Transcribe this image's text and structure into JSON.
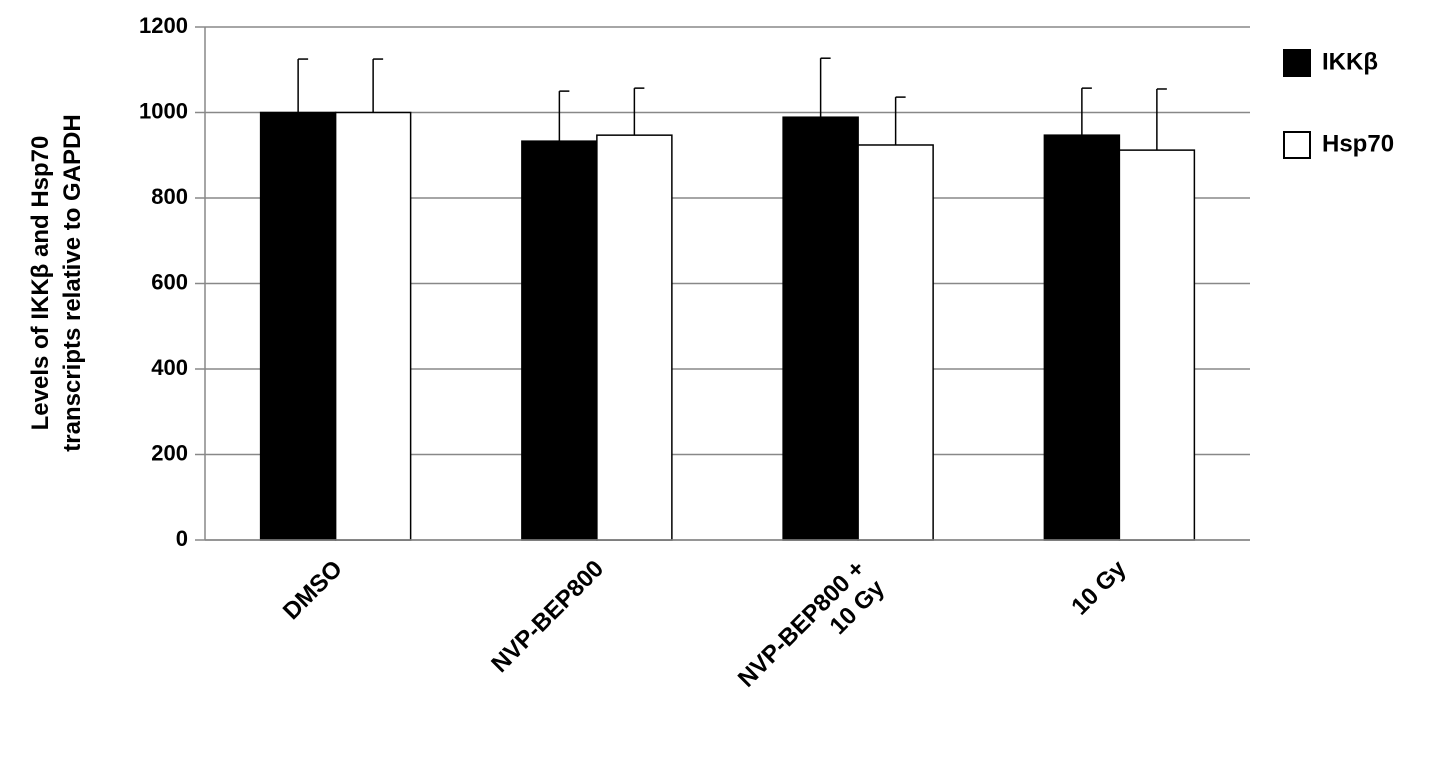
{
  "chart_data": {
    "type": "bar",
    "y_label": [
      "Levels of IKKβ and Hsp70",
      "transcripts relative to GAPDH"
    ],
    "categories": [
      "DMSO",
      "NVP-BEP800",
      "NVP-BEP800 +\n10 Gy",
      "10 Gy"
    ],
    "series": [
      {
        "name": "IKKβ",
        "color": "#000000",
        "values": [
          1000,
          933,
          989,
          947
        ],
        "errors": [
          125,
          117,
          138,
          110
        ]
      },
      {
        "name": "Hsp70",
        "color": "#ffffff",
        "values": [
          1000,
          947,
          924,
          912
        ],
        "errors": [
          125,
          110,
          112,
          143
        ]
      }
    ],
    "ylim": [
      0,
      1200
    ],
    "yticks": [
      0,
      200,
      400,
      600,
      800,
      1000,
      1200
    ],
    "grid": true,
    "legend": "right"
  }
}
